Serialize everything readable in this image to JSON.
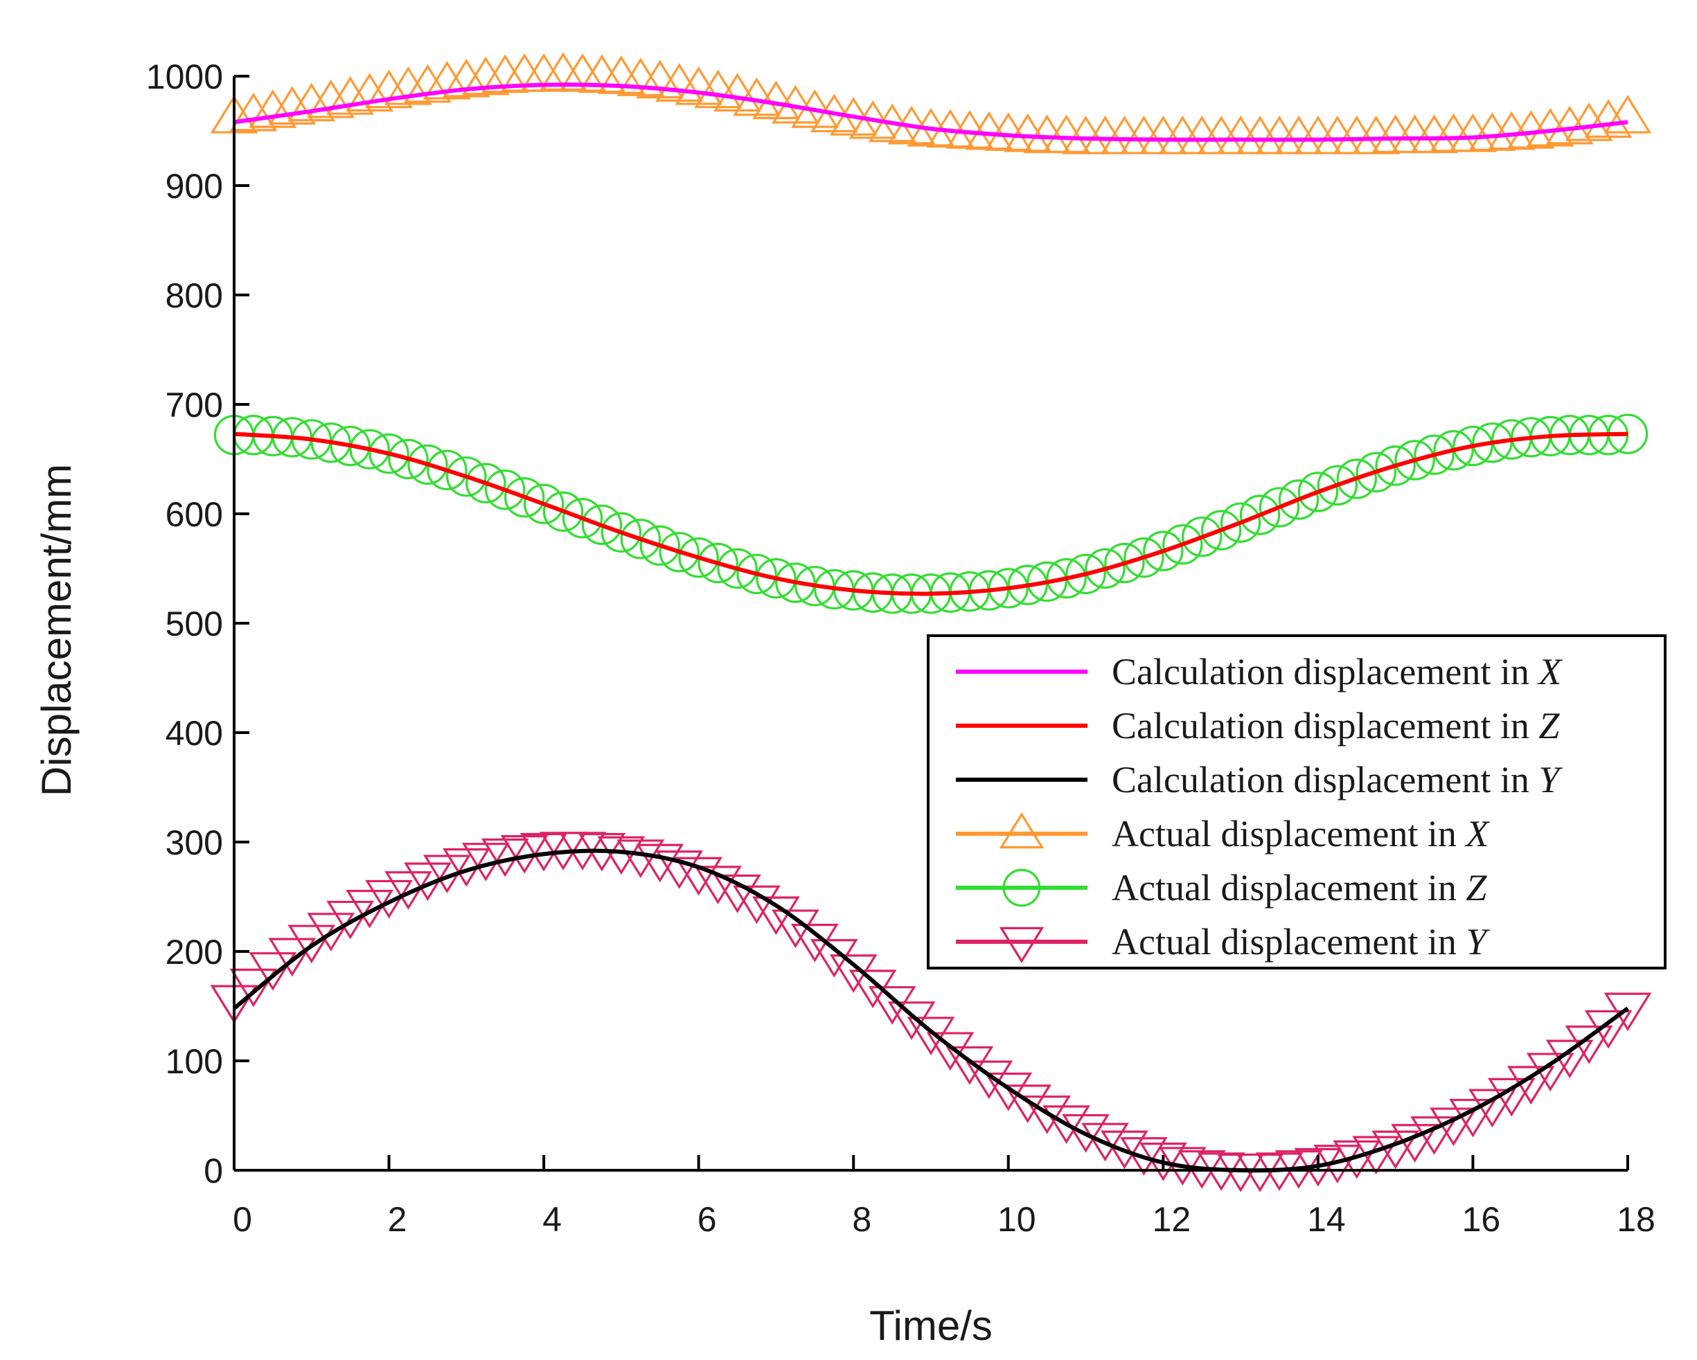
{
  "chart_data": {
    "type": "line",
    "title": "",
    "xlabel": "Time/s",
    "ylabel": "Displacement/mm",
    "xlim": [
      0,
      18
    ],
    "ylim": [
      0,
      1000
    ],
    "xticks": [
      0,
      2,
      4,
      6,
      8,
      10,
      12,
      14,
      16,
      18
    ],
    "yticks": [
      0,
      100,
      200,
      300,
      400,
      500,
      600,
      700,
      800,
      900,
      1000
    ],
    "xtick_labels": [
      "0",
      "2",
      "4",
      "6",
      "8",
      "10",
      "12",
      "14",
      "16",
      "18"
    ],
    "ytick_labels": [
      "0",
      "100",
      "200",
      "300",
      "400",
      "500",
      "600",
      "700",
      "800",
      "900",
      "1000"
    ],
    "grid": false,
    "legend_position": "right-middle",
    "series": [
      {
        "name": "Calculation displacement in X",
        "label_prefix": "Calculation displacement in ",
        "label_var": "X",
        "style": "line",
        "color": "#ff00ff",
        "x": [
          0,
          1,
          2,
          3,
          4,
          5,
          6,
          7,
          8,
          9,
          10,
          11,
          12,
          13,
          14,
          15,
          16,
          17,
          18
        ],
        "values": [
          958,
          968,
          979,
          988,
          992,
          991,
          985,
          975,
          963,
          952,
          946,
          943,
          942,
          942,
          942,
          943,
          944,
          950,
          958
        ]
      },
      {
        "name": "Calculation displacement in Z",
        "label_prefix": "Calculation displacement in ",
        "label_var": "Z",
        "style": "line",
        "color": "#ff0000",
        "x": [
          0,
          1,
          2,
          3,
          4,
          5,
          6,
          7,
          8,
          9,
          10,
          11,
          12,
          13,
          14,
          15,
          16,
          17,
          18
        ],
        "values": [
          673,
          668,
          655,
          634,
          609,
          583,
          560,
          541,
          530,
          527,
          532,
          545,
          566,
          592,
          620,
          644,
          662,
          671,
          673
        ]
      },
      {
        "name": "Calculation displacement in Y",
        "label_prefix": "Calculation displacement in ",
        "label_var": "Y",
        "style": "line",
        "color": "#000000",
        "x": [
          0,
          1,
          2,
          3,
          4,
          5,
          6,
          7,
          8,
          9,
          10,
          11,
          12,
          13,
          14,
          15,
          16,
          17,
          18
        ],
        "values": [
          148,
          205,
          245,
          274,
          289,
          291,
          277,
          242,
          188,
          127,
          75,
          33,
          7,
          0,
          4,
          24,
          55,
          97,
          148
        ]
      },
      {
        "name": "Actual displacement in X",
        "label_prefix": "Actual displacement in ",
        "label_var": "X",
        "style": "marker",
        "marker": "triangle-up",
        "color": "#ff9933",
        "x": [
          0,
          0.25,
          0.5,
          0.75,
          1,
          1.25,
          1.5,
          1.75,
          2,
          2.25,
          2.5,
          2.75,
          3,
          3.25,
          3.5,
          3.75,
          4,
          4.25,
          4.5,
          4.75,
          5,
          5.25,
          5.5,
          5.75,
          6,
          6.25,
          6.5,
          6.75,
          7,
          7.25,
          7.5,
          7.75,
          8,
          8.25,
          8.5,
          8.75,
          9,
          9.25,
          9.5,
          9.75,
          10,
          10.25,
          10.5,
          10.75,
          11,
          11.25,
          11.5,
          11.75,
          12,
          12.25,
          12.5,
          12.75,
          13,
          13.25,
          13.5,
          13.75,
          14,
          14.25,
          14.5,
          14.75,
          15,
          15.25,
          15.5,
          15.75,
          16,
          16.25,
          16.5,
          16.75,
          17,
          17.25,
          17.5,
          17.75,
          18
        ],
        "values": [
          962,
          964,
          967,
          970,
          973,
          976,
          979,
          982,
          985,
          988,
          990,
          993,
          995,
          997,
          999,
          1000,
          1000,
          1001,
          1000,
          999,
          998,
          996,
          994,
          991,
          988,
          985,
          982,
          978,
          975,
          971,
          967,
          963,
          960,
          957,
          954,
          952,
          950,
          949,
          948,
          947,
          946,
          945,
          944,
          944,
          943,
          943,
          943,
          943,
          943,
          943,
          943,
          943,
          943,
          943,
          943,
          943,
          943,
          943,
          943,
          943,
          944,
          944,
          944,
          945,
          945,
          946,
          947,
          948,
          950,
          952,
          955,
          958,
          962
        ]
      },
      {
        "name": "Actual displacement in Z",
        "label_prefix": "Actual displacement in ",
        "label_var": "Z",
        "style": "marker",
        "marker": "circle",
        "color": "#33dd33",
        "x": [
          0,
          0.25,
          0.5,
          0.75,
          1,
          1.25,
          1.5,
          1.75,
          2,
          2.25,
          2.5,
          2.75,
          3,
          3.25,
          3.5,
          3.75,
          4,
          4.25,
          4.5,
          4.75,
          5,
          5.25,
          5.5,
          5.75,
          6,
          6.25,
          6.5,
          6.75,
          7,
          7.25,
          7.5,
          7.75,
          8,
          8.25,
          8.5,
          8.75,
          9,
          9.25,
          9.5,
          9.75,
          10,
          10.25,
          10.5,
          10.75,
          11,
          11.25,
          11.5,
          11.75,
          12,
          12.25,
          12.5,
          12.75,
          13,
          13.25,
          13.5,
          13.75,
          14,
          14.25,
          14.5,
          14.75,
          15,
          15.25,
          15.5,
          15.75,
          16,
          16.25,
          16.5,
          16.75,
          17,
          17.25,
          17.5,
          17.75,
          18
        ],
        "values": [
          672,
          672,
          671,
          670,
          668,
          665,
          662,
          659,
          655,
          650,
          645,
          640,
          634,
          628,
          622,
          615,
          609,
          602,
          596,
          590,
          583,
          577,
          571,
          565,
          560,
          555,
          550,
          545,
          541,
          537,
          534,
          531,
          530,
          528,
          527,
          527,
          527,
          528,
          529,
          530,
          532,
          535,
          538,
          541,
          545,
          550,
          555,
          560,
          566,
          572,
          579,
          585,
          592,
          599,
          606,
          613,
          620,
          626,
          632,
          638,
          644,
          649,
          654,
          658,
          662,
          665,
          668,
          670,
          671,
          672,
          672,
          672,
          673
        ]
      },
      {
        "name": "Actual displacement in Y",
        "label_prefix": "Actual displacement in ",
        "label_var": "Y",
        "style": "marker",
        "marker": "triangle-down",
        "color": "#dd2266",
        "x": [
          0,
          0.25,
          0.5,
          0.75,
          1,
          1.25,
          1.5,
          1.75,
          2,
          2.25,
          2.5,
          2.75,
          3,
          3.25,
          3.5,
          3.75,
          4,
          4.25,
          4.5,
          4.75,
          5,
          5.25,
          5.5,
          5.75,
          6,
          6.25,
          6.5,
          6.75,
          7,
          7.25,
          7.5,
          7.75,
          8,
          8.25,
          8.5,
          8.75,
          9,
          9.25,
          9.5,
          9.75,
          10,
          10.25,
          10.5,
          10.75,
          11,
          11.25,
          11.5,
          11.75,
          12,
          12.25,
          12.5,
          12.75,
          13,
          13.25,
          13.5,
          13.75,
          14,
          14.25,
          14.5,
          14.75,
          15,
          15.25,
          15.5,
          15.75,
          16,
          16.25,
          16.5,
          16.75,
          17,
          17.25,
          17.5,
          17.75,
          18
        ],
        "values": [
          155,
          170,
          185,
          198,
          210,
          221,
          232,
          242,
          251,
          259,
          267,
          274,
          280,
          285,
          289,
          292,
          294,
          295,
          295,
          294,
          291,
          288,
          284,
          278,
          272,
          264,
          256,
          246,
          236,
          224,
          211,
          197,
          183,
          169,
          154,
          140,
          126,
          112,
          99,
          86,
          75,
          64,
          54,
          45,
          37,
          29,
          22,
          16,
          11,
          7,
          4,
          2,
          1,
          1,
          2,
          4,
          6,
          9,
          13,
          17,
          22,
          28,
          35,
          43,
          51,
          60,
          70,
          81,
          93,
          105,
          118,
          132,
          148
        ]
      }
    ]
  }
}
